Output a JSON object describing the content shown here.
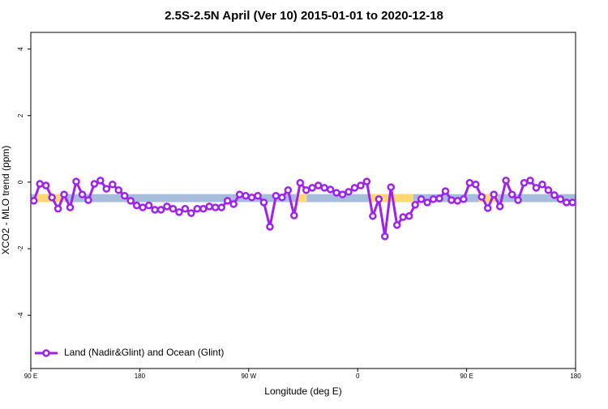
{
  "chart_data": {
    "type": "line",
    "title": "2.5S-2.5N April (Ver 10)   2015-01-01 to 2020-12-18",
    "x_label": "Longitude (deg E)",
    "y_label": "XCO2 - MLO trend (ppm)",
    "xlim": [
      90,
      540
    ],
    "ylim": [
      -5.6,
      4.5
    ],
    "xticks": [
      {
        "value": 90,
        "label": "90 E"
      },
      180,
      {
        "value": 270,
        "label": "90 W"
      },
      {
        "value": 360,
        "label": "0"
      },
      {
        "value": 450,
        "label": "90 E"
      },
      {
        "value": 540,
        "label": "180"
      }
    ],
    "yticks": [
      -4,
      -2,
      0,
      2,
      4
    ],
    "legend": "bottom-left",
    "surface_band": {
      "ylim": [
        -0.6,
        -0.36
      ],
      "ocean_color": "#a6bddb",
      "land_color": "#ffd873",
      "land_ranges": [
        [
          95,
          118
        ],
        [
          309,
          318
        ],
        [
          369,
          406
        ],
        [
          460,
          476
        ]
      ]
    },
    "x": [
      92.5,
      97.5,
      102.5,
      107.5,
      112.5,
      117.5,
      122.5,
      127.5,
      132.5,
      137.5,
      142.5,
      147.5,
      152.5,
      157.5,
      162.5,
      167.5,
      172.5,
      177.5,
      182.5,
      187.5,
      192.5,
      197.5,
      202.5,
      207.5,
      212.5,
      217.5,
      222.5,
      227.5,
      232.5,
      237.5,
      242.5,
      247.5,
      252.5,
      257.5,
      262.5,
      267.5,
      272.5,
      277.5,
      282.5,
      287.5,
      292.5,
      297.5,
      302.5,
      307.5,
      312.5,
      317.5,
      322.5,
      327.5,
      332.5,
      337.5,
      342.5,
      347.5,
      352.5,
      357.5,
      362.5,
      367.5,
      372.5,
      377.5,
      382.5,
      387.5,
      392.5,
      397.5,
      402.5,
      407.5,
      412.5,
      417.5,
      422.5,
      427.5,
      432.5,
      437.5,
      442.5,
      447.5,
      452.5,
      457.5,
      462.5,
      467.5,
      472.5,
      477.5,
      482.5,
      487.5,
      492.5,
      497.5,
      502.5,
      507.5,
      512.5,
      517.5,
      522.5,
      527.5,
      532.5,
      537.5
    ],
    "series": [
      {
        "name": "Land (Nadir&Glint) and Ocean (Glint)",
        "color": "#a020f0",
        "values": [
          -0.56,
          -0.05,
          -0.1,
          -0.46,
          -0.8,
          -0.37,
          -0.76,
          0.02,
          -0.37,
          -0.54,
          -0.05,
          0.05,
          -0.2,
          -0.07,
          -0.24,
          -0.41,
          -0.56,
          -0.7,
          -0.76,
          -0.7,
          -0.83,
          -0.83,
          -0.73,
          -0.8,
          -0.9,
          -0.8,
          -0.93,
          -0.8,
          -0.8,
          -0.73,
          -0.76,
          -0.76,
          -0.56,
          -0.66,
          -0.37,
          -0.41,
          -0.46,
          -0.41,
          -0.61,
          -1.34,
          -0.41,
          -0.46,
          -0.24,
          -1.0,
          -0.02,
          -0.24,
          -0.17,
          -0.1,
          -0.17,
          -0.22,
          -0.32,
          -0.37,
          -0.29,
          -0.17,
          -0.1,
          0.02,
          -1.02,
          -0.51,
          -1.63,
          -0.15,
          -1.29,
          -1.05,
          -1.02,
          -0.68,
          -0.51,
          -0.61,
          -0.51,
          -0.49,
          -0.27,
          -0.54,
          -0.56,
          -0.51,
          -0.02,
          -0.07,
          -0.44,
          -0.78,
          -0.37,
          -0.73,
          0.05,
          -0.37,
          -0.54,
          -0.02,
          0.05,
          -0.17,
          -0.07,
          -0.24,
          -0.39,
          -0.51,
          -0.61,
          -0.61
        ]
      }
    ]
  }
}
